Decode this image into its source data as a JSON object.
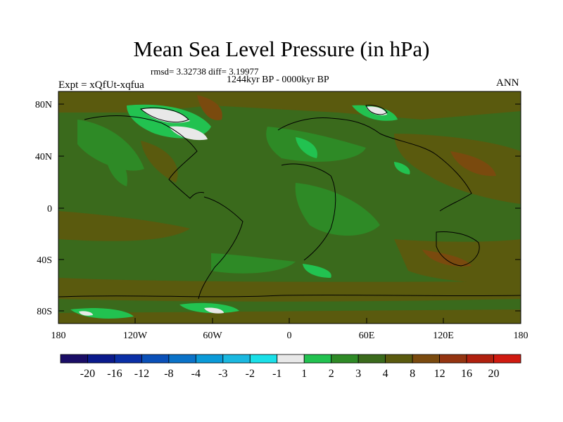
{
  "title": "Mean Sea Level Pressure (in hPa)",
  "stats": "rmsd= 3.32738 diff= 3.19977",
  "period": "1244kyr BP - 0000kyr BP",
  "experiment": "Expt = xQfUt-xqfua",
  "season": "ANN",
  "lat_ticks": [
    "80N",
    "40N",
    "0",
    "40S",
    "80S"
  ],
  "lon_ticks": [
    "180",
    "120W",
    "60W",
    "0",
    "60E",
    "120E",
    "180"
  ],
  "colorbar": {
    "labels": [
      "-20",
      "-16",
      "-12",
      "-8",
      "-4",
      "-3",
      "-2",
      "-1",
      "1",
      "2",
      "3",
      "4",
      "8",
      "12",
      "16",
      "20"
    ],
    "colors": [
      "#1a0d66",
      "#0a1a8c",
      "#0a2fa6",
      "#0a50b8",
      "#0a72c8",
      "#0a9ad8",
      "#1ab8e0",
      "#1ae0e8",
      "#e8e8e8",
      "#22c250",
      "#2e8a26",
      "#3a6a1c",
      "#5a5a0e",
      "#7a4a0e",
      "#943410",
      "#b0200e",
      "#d01a10"
    ]
  },
  "colors": {
    "field_base": "#3a6a1c",
    "field_mid": "#5a5a0e",
    "field_high": "#7a4a0e",
    "field_bright": "#22c250",
    "field_green": "#2e8a26",
    "field_white": "#e8e8e8"
  }
}
